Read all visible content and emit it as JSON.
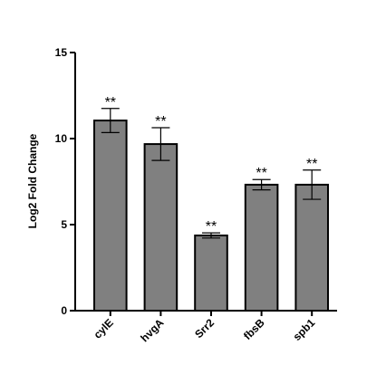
{
  "chart_data": {
    "type": "bar",
    "y_label": "Log2 Fold Change",
    "categories": [
      "cylE",
      "hvgA",
      "Srr2",
      "fbsB",
      "spb1"
    ],
    "values": [
      11.05,
      9.68,
      4.37,
      7.32,
      7.32
    ],
    "errors": [
      0.7,
      0.95,
      0.15,
      0.3,
      0.85
    ],
    "annotations": [
      "**",
      "**",
      "**",
      "**",
      "**"
    ],
    "color": "#808080",
    "ylim": [
      0,
      15
    ],
    "yticks": [
      0,
      5,
      10,
      15
    ],
    "grid": false
  }
}
